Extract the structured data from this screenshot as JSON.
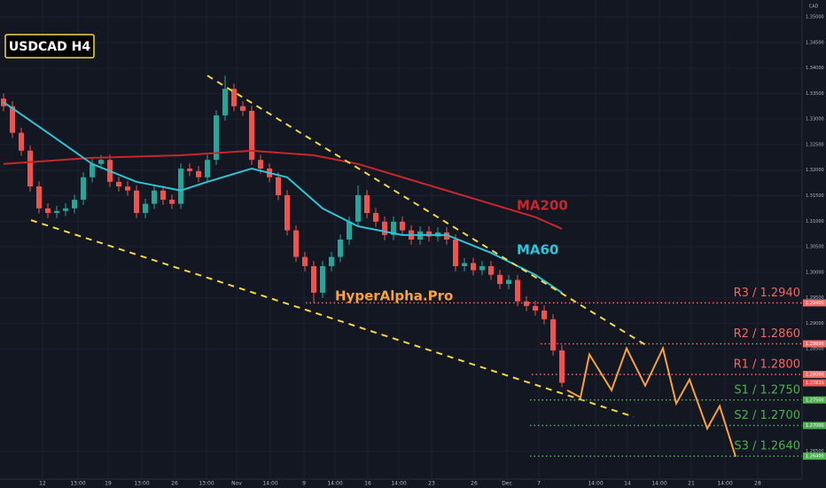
{
  "chart_data": {
    "type": "candlestick",
    "title": "USDCAD H4",
    "watermark": "HyperAlpha.Pro",
    "currency": "CAD",
    "up_color": "#26a69a",
    "down_color": "#ef5350",
    "grid": true,
    "ylim": [
      1.2595,
      1.3533
    ],
    "xlim": [
      -0.4,
      90.1
    ],
    "yticks": [
      {
        "value": 1.35,
        "label": "1.35000"
      },
      {
        "value": 1.345,
        "label": "1.34500"
      },
      {
        "value": 1.34,
        "label": "1.34000"
      },
      {
        "value": 1.335,
        "label": "1.33500"
      },
      {
        "value": 1.33,
        "label": "1.33000"
      },
      {
        "value": 1.325,
        "label": "1.32500"
      },
      {
        "value": 1.32,
        "label": "1.32000"
      },
      {
        "value": 1.315,
        "label": "1.31500"
      },
      {
        "value": 1.31,
        "label": "1.31000"
      },
      {
        "value": 1.305,
        "label": "1.30500"
      },
      {
        "value": 1.3,
        "label": "1.30000"
      },
      {
        "value": 1.295,
        "label": "1.29500"
      },
      {
        "value": 1.29,
        "label": "1.29000"
      },
      {
        "value": 1.285,
        "label": "1.28500"
      },
      {
        "value": 1.265,
        "label": "1.26500"
      }
    ],
    "xticks": [
      {
        "value": 4.4,
        "label": "12"
      },
      {
        "value": 8.4,
        "label": "13:00"
      },
      {
        "value": 11.8,
        "label": "19"
      },
      {
        "value": 15.6,
        "label": "13:00"
      },
      {
        "value": 19.3,
        "label": "26"
      },
      {
        "value": 22.9,
        "label": "13:00"
      },
      {
        "value": 26.3,
        "label": "Nov"
      },
      {
        "value": 30.1,
        "label": "14:00"
      },
      {
        "value": 33.9,
        "label": "9"
      },
      {
        "value": 37.4,
        "label": "14:00"
      },
      {
        "value": 41.1,
        "label": "16"
      },
      {
        "value": 44.6,
        "label": "14:00"
      },
      {
        "value": 48.3,
        "label": "23"
      },
      {
        "value": 53.1,
        "label": "26"
      },
      {
        "value": 56.8,
        "label": "Dec"
      },
      {
        "value": 60.4,
        "label": "7"
      },
      {
        "value": 66.8,
        "label": "14:00"
      },
      {
        "value": 70.4,
        "label": "14"
      },
      {
        "value": 74,
        "label": "14:00"
      },
      {
        "value": 77.6,
        "label": "21"
      },
      {
        "value": 81.4,
        "label": "14:00"
      },
      {
        "value": 85.1,
        "label": "28"
      }
    ],
    "candles": [
      [
        1.334,
        1.335,
        1.3315,
        1.3325
      ],
      [
        1.3325,
        1.3335,
        1.3263,
        1.3273
      ],
      [
        1.3273,
        1.3283,
        1.3228,
        1.3238
      ],
      [
        1.3238,
        1.3248,
        1.3158,
        1.3168
      ],
      [
        1.3168,
        1.3178,
        1.3115,
        1.3125
      ],
      [
        1.3125,
        1.3135,
        1.3106,
        1.3116
      ],
      [
        1.3116,
        1.313,
        1.3106,
        1.312
      ],
      [
        1.312,
        1.3135,
        1.311,
        1.3125
      ],
      [
        1.3125,
        1.3152,
        1.3115,
        1.3142
      ],
      [
        1.3142,
        1.3196,
        1.3132,
        1.3186
      ],
      [
        1.3186,
        1.3222,
        1.3176,
        1.3212
      ],
      [
        1.3212,
        1.323,
        1.3202,
        1.322
      ],
      [
        1.322,
        1.323,
        1.3167,
        1.3177
      ],
      [
        1.3177,
        1.3187,
        1.3158,
        1.3168
      ],
      [
        1.3168,
        1.3178,
        1.315,
        1.316
      ],
      [
        1.316,
        1.317,
        1.3106,
        1.3116
      ],
      [
        1.3116,
        1.3144,
        1.3106,
        1.3134
      ],
      [
        1.3134,
        1.317,
        1.3124,
        1.316
      ],
      [
        1.316,
        1.317,
        1.3132,
        1.3142
      ],
      [
        1.3142,
        1.3152,
        1.3124,
        1.3134
      ],
      [
        1.3134,
        1.3213,
        1.3124,
        1.3203
      ],
      [
        1.3203,
        1.3213,
        1.3188,
        1.3198
      ],
      [
        1.3198,
        1.3208,
        1.3176,
        1.3186
      ],
      [
        1.3186,
        1.323,
        1.3176,
        1.322
      ],
      [
        1.322,
        1.3317,
        1.321,
        1.3307
      ],
      [
        1.3307,
        1.3385,
        1.3297,
        1.3359
      ],
      [
        1.3359,
        1.3369,
        1.3315,
        1.3325
      ],
      [
        1.3325,
        1.3335,
        1.3306,
        1.3316
      ],
      [
        1.3316,
        1.3326,
        1.321,
        1.322
      ],
      [
        1.322,
        1.323,
        1.3193,
        1.3203
      ],
      [
        1.3203,
        1.3213,
        1.3176,
        1.3186
      ],
      [
        1.3186,
        1.3196,
        1.3141,
        1.3151
      ],
      [
        1.3151,
        1.3161,
        1.3072,
        1.3082
      ],
      [
        1.3082,
        1.3092,
        1.302,
        1.303
      ],
      [
        1.303,
        1.304,
        1.3002,
        1.3012
      ],
      [
        1.3012,
        1.3022,
        1.294,
        1.296
      ],
      [
        1.296,
        1.3022,
        1.295,
        1.3012
      ],
      [
        1.3012,
        1.304,
        1.3002,
        1.303
      ],
      [
        1.303,
        1.3074,
        1.302,
        1.3064
      ],
      [
        1.3064,
        1.3109,
        1.3054,
        1.3099
      ],
      [
        1.3099,
        1.317,
        1.3089,
        1.3151
      ],
      [
        1.3151,
        1.3161,
        1.3106,
        1.3116
      ],
      [
        1.3116,
        1.3126,
        1.3089,
        1.3099
      ],
      [
        1.3099,
        1.3109,
        1.3063,
        1.3073
      ],
      [
        1.3073,
        1.3109,
        1.3063,
        1.3099
      ],
      [
        1.3099,
        1.3109,
        1.3072,
        1.3082
      ],
      [
        1.3082,
        1.3092,
        1.3054,
        1.3064
      ],
      [
        1.3064,
        1.309,
        1.3054,
        1.308
      ],
      [
        1.308,
        1.309,
        1.306,
        1.307
      ],
      [
        1.307,
        1.3088,
        1.306,
        1.3078
      ],
      [
        1.3078,
        1.3088,
        1.3054,
        1.3064
      ],
      [
        1.3064,
        1.3074,
        1.3002,
        1.3012
      ],
      [
        1.3012,
        1.3028,
        1.3002,
        1.3018
      ],
      [
        1.3018,
        1.3028,
        1.2994,
        1.3004
      ],
      [
        1.3004,
        1.3022,
        1.2994,
        1.3012
      ],
      [
        1.3012,
        1.3022,
        1.2985,
        1.2995
      ],
      [
        1.2995,
        1.3005,
        1.2967,
        1.2977
      ],
      [
        1.2977,
        1.2995,
        1.2967,
        1.2985
      ],
      [
        1.2985,
        1.2995,
        1.2933,
        1.2943
      ],
      [
        1.2943,
        1.2953,
        1.2924,
        1.2934
      ],
      [
        1.2934,
        1.2944,
        1.2915,
        1.2925
      ],
      [
        1.2925,
        1.2935,
        1.2898,
        1.2908
      ],
      [
        1.2908,
        1.2918,
        1.2837,
        1.2847
      ],
      [
        1.2847,
        1.2857,
        1.2775,
        1.27835
      ]
    ],
    "series": [
      {
        "name": "MA200",
        "color": "#c8262c",
        "x": [
          0,
          10,
          20,
          28,
          35,
          40,
          45,
          50,
          55,
          60,
          63
        ],
        "values": [
          1.3212,
          1.3224,
          1.3229,
          1.3238,
          1.3229,
          1.3212,
          1.3186,
          1.316,
          1.3134,
          1.3108,
          1.3085
        ]
      },
      {
        "name": "MA60",
        "color": "#2ec4d6",
        "x": [
          0,
          5,
          10,
          15,
          20,
          23,
          28,
          32,
          36,
          40,
          45,
          50,
          55,
          60,
          63
        ],
        "values": [
          1.3333,
          1.3273,
          1.3212,
          1.3177,
          1.316,
          1.3177,
          1.3203,
          1.3186,
          1.3125,
          1.309,
          1.3073,
          1.3073,
          1.3038,
          1.2995,
          1.296
        ]
      }
    ],
    "trendlines": [
      {
        "x": [
          23,
          72.6
        ],
        "values": [
          1.3385,
          1.2856
        ]
      },
      {
        "x": [
          3.1,
          71.1
        ],
        "values": [
          1.3102,
          1.2717
        ]
      }
    ],
    "projection": {
      "color": "#f7a23b",
      "x": [
        63.6,
        65.1,
        66.1,
        68.6,
        70.3,
        72.4,
        74.4,
        75.9,
        77.4,
        79.4,
        80.8,
        82.6
      ],
      "values": [
        1.2769,
        1.2755,
        1.2839,
        1.2769,
        1.2851,
        1.2778,
        1.2851,
        1.2743,
        1.279,
        1.2694,
        1.2738,
        1.2639
      ]
    },
    "levels": [
      {
        "label": "R3 / 1.2940",
        "value": 1.294,
        "tag": "1.29400",
        "start": 34.1,
        "color": "#f06a66"
      },
      {
        "label": "R2 / 1.2860",
        "value": 1.286,
        "tag": "1.28600",
        "start": 60.6,
        "color": "#f06a66"
      },
      {
        "label": "R1 / 1.2800",
        "value": 1.28,
        "tag": "1.28000",
        "start": 59.6,
        "color": "#f06a66"
      },
      {
        "label": "S1 / 1.2750",
        "value": 1.275,
        "tag": "1.27500",
        "start": 59.4,
        "color": "#4caf50"
      },
      {
        "label": "S2 / 1.2700",
        "value": 1.27,
        "tag": "1.27000",
        "start": 59.4,
        "color": "#4caf50"
      },
      {
        "label": "S3 / 1.2640",
        "value": 1.264,
        "tag": "1.26400",
        "start": 59.4,
        "color": "#4caf50"
      }
    ],
    "last_price": {
      "value": 1.27835,
      "label": "1.27835"
    }
  }
}
